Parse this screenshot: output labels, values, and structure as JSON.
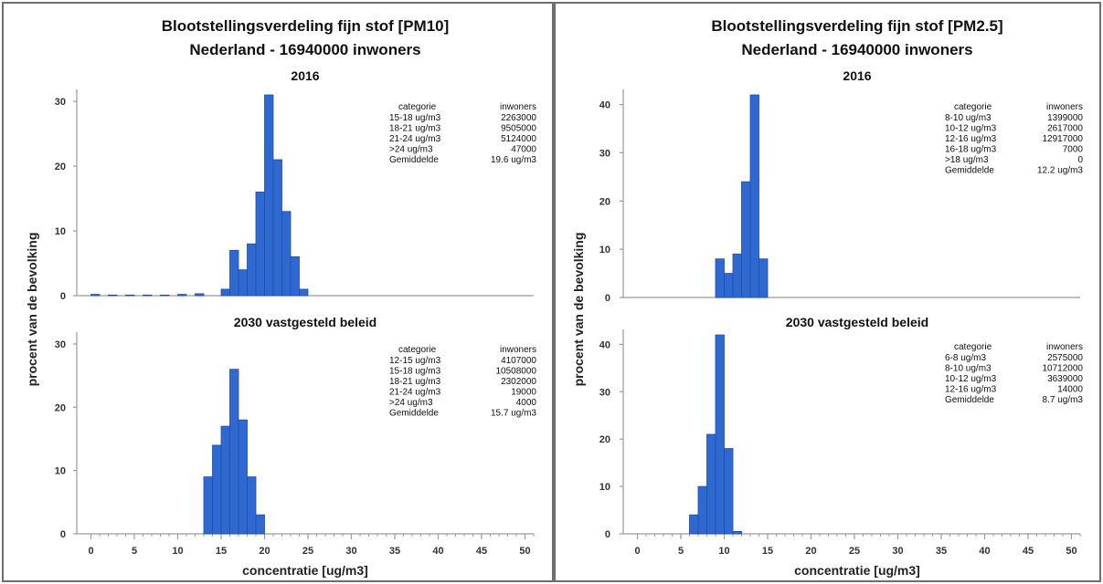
{
  "chart_data": [
    {
      "type": "bar",
      "title": "Blootstellingsverdeling fijn stof [PM10]",
      "subtitle": "Nederland - 16940000 inwoners",
      "ylabel": "procent van de bevolking",
      "xlabel": "concentratie [ug/m3]",
      "xlim": [
        -1,
        51
      ],
      "x_ticks": [
        0,
        5,
        10,
        15,
        20,
        25,
        30,
        35,
        40,
        45,
        50
      ],
      "ylim": [
        0,
        31
      ],
      "y_ticks": [
        0,
        10,
        20,
        30
      ],
      "bin_width": 1,
      "panels": [
        {
          "label": "2016",
          "bins": [
            {
              "x": 0,
              "value": 0.2
            },
            {
              "x": 2,
              "value": 0.1
            },
            {
              "x": 4,
              "value": 0.1
            },
            {
              "x": 6,
              "value": 0.1
            },
            {
              "x": 8,
              "value": 0.1
            },
            {
              "x": 10,
              "value": 0.2
            },
            {
              "x": 12,
              "value": 0.3
            },
            {
              "x": 15,
              "value": 1
            },
            {
              "x": 16,
              "value": 7
            },
            {
              "x": 17,
              "value": 4
            },
            {
              "x": 18,
              "value": 8
            },
            {
              "x": 19,
              "value": 16
            },
            {
              "x": 20,
              "value": 31
            },
            {
              "x": 21,
              "value": 21
            },
            {
              "x": 22,
              "value": 13
            },
            {
              "x": 23,
              "value": 6
            },
            {
              "x": 24,
              "value": 1
            }
          ],
          "legend": {
            "headers": [
              "categorie",
              "inwoners"
            ],
            "rows": [
              [
                "15-18 ug/m3",
                "2263000"
              ],
              [
                "18-21 ug/m3",
                "9505000"
              ],
              [
                "21-24 ug/m3",
                "5124000"
              ],
              [
                ">24 ug/m3",
                "47000"
              ],
              [
                "Gemiddelde",
                "19.6 ug/m3"
              ]
            ]
          }
        },
        {
          "label": "2030 vastgesteld beleid",
          "bins": [
            {
              "x": 13,
              "value": 9
            },
            {
              "x": 14,
              "value": 14
            },
            {
              "x": 15,
              "value": 17
            },
            {
              "x": 16,
              "value": 26
            },
            {
              "x": 17,
              "value": 18
            },
            {
              "x": 18,
              "value": 9
            },
            {
              "x": 19,
              "value": 3
            }
          ],
          "legend": {
            "headers": [
              "categorie",
              "inwoners"
            ],
            "rows": [
              [
                "12-15 ug/m3",
                "4107000"
              ],
              [
                "15-18 ug/m3",
                "10508000"
              ],
              [
                "18-21 ug/m3",
                "2302000"
              ],
              [
                "21-24 ug/m3",
                "19000"
              ],
              [
                ">24 ug/m3",
                "4000"
              ],
              [
                "Gemiddelde",
                "15.7 ug/m3"
              ]
            ]
          }
        }
      ]
    },
    {
      "type": "bar",
      "title": "Blootstellingsverdeling fijn stof [PM2.5]",
      "subtitle": "Nederland - 16940000 inwoners",
      "ylabel": "procent van de bevolking",
      "xlabel": "concentratie [ug/m3]",
      "xlim": [
        -1,
        51
      ],
      "x_ticks": [
        0,
        5,
        10,
        15,
        20,
        25,
        30,
        35,
        40,
        45,
        50
      ],
      "ylim": [
        0,
        42
      ],
      "y_ticks": [
        0,
        10,
        20,
        30,
        40
      ],
      "bin_width": 1,
      "panels": [
        {
          "label": "2016",
          "bins": [
            {
              "x": 9,
              "value": 8
            },
            {
              "x": 10,
              "value": 5
            },
            {
              "x": 11,
              "value": 9
            },
            {
              "x": 12,
              "value": 24
            },
            {
              "x": 13,
              "value": 42
            },
            {
              "x": 14,
              "value": 8
            }
          ],
          "legend": {
            "headers": [
              "categorie",
              "inwoners"
            ],
            "rows": [
              [
                "8-10 ug/m3",
                "1399000"
              ],
              [
                "10-12 ug/m3",
                "2617000"
              ],
              [
                "12-16 ug/m3",
                "12917000"
              ],
              [
                "16-18 ug/m3",
                "7000"
              ],
              [
                ">18 ug/m3",
                "0"
              ],
              [
                "Gemiddelde",
                "12.2 ug/m3"
              ]
            ]
          }
        },
        {
          "label": "2030 vastgesteld beleid",
          "bins": [
            {
              "x": 6,
              "value": 4
            },
            {
              "x": 7,
              "value": 10
            },
            {
              "x": 8,
              "value": 21
            },
            {
              "x": 9,
              "value": 42
            },
            {
              "x": 10,
              "value": 18
            },
            {
              "x": 11,
              "value": 0.5
            }
          ],
          "legend": {
            "headers": [
              "categorie",
              "inwoners"
            ],
            "rows": [
              [
                "6-8 ug/m3",
                "2575000"
              ],
              [
                "8-10 ug/m3",
                "10712000"
              ],
              [
                "10-12 ug/m3",
                "3639000"
              ],
              [
                "12-16 ug/m3",
                "14000"
              ],
              [
                "Gemiddelde",
                "8.7 ug/m3"
              ]
            ]
          }
        }
      ]
    }
  ],
  "colors": {
    "bar_fill": "#2f68d0",
    "bar_edge": "#1e4fa8",
    "axis": "#9a9a9a",
    "border": "#6e6e6e"
  }
}
